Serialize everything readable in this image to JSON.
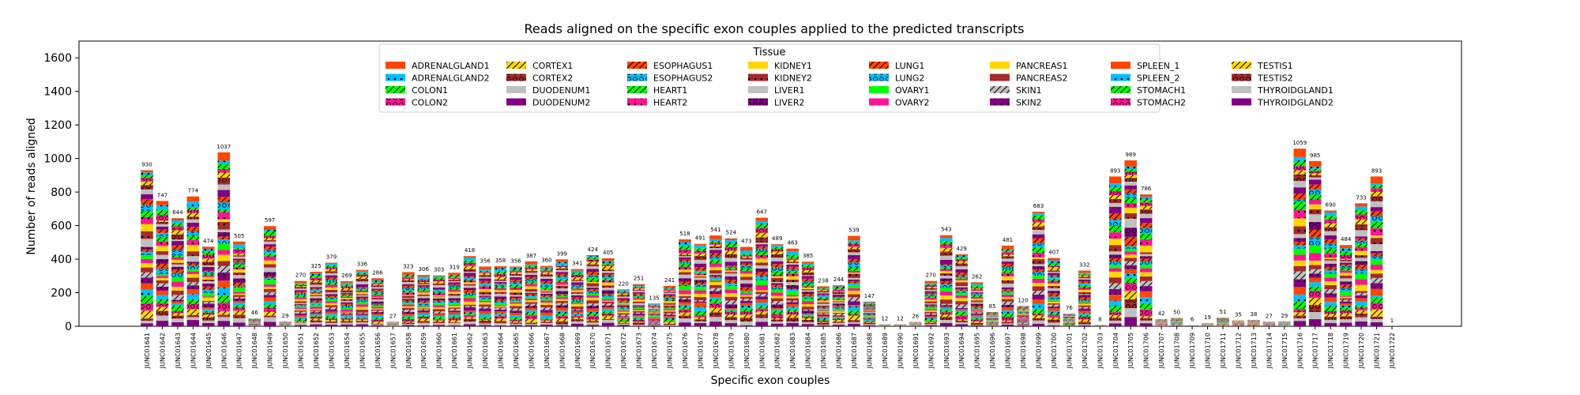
{
  "chart_data": {
    "type": "bar",
    "stacked": true,
    "title": "Reads aligned on the specific exon couples applied to the predicted transcripts",
    "xlabel": "Specific exon couples",
    "ylabel": "Number of reads aligned",
    "ylim": [
      0,
      1700
    ],
    "yticks": [
      0,
      200,
      400,
      600,
      800,
      1000,
      1200,
      1400,
      1600
    ],
    "grid": false,
    "legend": {
      "title": "Tissue",
      "placement": "top-center",
      "columns": 7
    },
    "categories": [
      "JUNC01641",
      "JUNC01642",
      "JUNC01643",
      "JUNC01644",
      "JUNC01645",
      "JUNC01646",
      "JUNC01647",
      "JUNC01648",
      "JUNC01649",
      "JUNC01650",
      "JUNC01651",
      "JUNC01652",
      "JUNC01653",
      "JUNC01654",
      "JUNC01655",
      "JUNC01656",
      "JUNC01657",
      "JUNC01658",
      "JUNC01659",
      "JUNC01660",
      "JUNC01661",
      "JUNC01662",
      "JUNC01663",
      "JUNC01664",
      "JUNC01665",
      "JUNC01666",
      "JUNC01667",
      "JUNC01668",
      "JUNC01669",
      "JUNC01670",
      "JUNC01671",
      "JUNC01672",
      "JUNC01673",
      "JUNC01674",
      "JUNC01675",
      "JUNC01676",
      "JUNC01677",
      "JUNC01678",
      "JUNC01679",
      "JUNC01680",
      "JUNC01681",
      "JUNC01682",
      "JUNC01683",
      "JUNC01684",
      "JUNC01685",
      "JUNC01686",
      "JUNC01687",
      "JUNC01688",
      "JUNC01689",
      "JUNC01690",
      "JUNC01691",
      "JUNC01692",
      "JUNC01693",
      "JUNC01694",
      "JUNC01695",
      "JUNC01696",
      "JUNC01697",
      "JUNC01698",
      "JUNC01699",
      "JUNC01700",
      "JUNC01701",
      "JUNC01702",
      "JUNC01703",
      "JUNC01704",
      "JUNC01705",
      "JUNC01706",
      "JUNC01707",
      "JUNC01708",
      "JUNC01709",
      "JUNC01710",
      "JUNC01711",
      "JUNC01712",
      "JUNC01713",
      "JUNC01714",
      "JUNC01715",
      "JUNC01716",
      "JUNC01717",
      "JUNC01718",
      "JUNC01719",
      "JUNC01720",
      "JUNC01721",
      "JUNC01722"
    ],
    "totals": [
      930,
      747,
      644,
      774,
      474,
      1037,
      505,
      46,
      597,
      29,
      270,
      325,
      379,
      269,
      336,
      286,
      27,
      323,
      306,
      303,
      319,
      418,
      356,
      358,
      356,
      387,
      360,
      399,
      341,
      424,
      405,
      220,
      251,
      135,
      241,
      518,
      491,
      541,
      524,
      473,
      647,
      489,
      463,
      385,
      238,
      244,
      539,
      147,
      12,
      12,
      26,
      270,
      543,
      429,
      262,
      85,
      481,
      120,
      683,
      407,
      76,
      332,
      8,
      893,
      989,
      786,
      42,
      50,
      6,
      19,
      51,
      35,
      38,
      27,
      29,
      1059,
      985,
      690,
      484,
      733,
      893,
      1
    ],
    "series": [
      {
        "name": "ADRENALGLAND1",
        "color": "#FF4500",
        "hatch": ""
      },
      {
        "name": "ADRENALGLAND2",
        "color": "#00BFFF",
        "hatch": "dot"
      },
      {
        "name": "COLON1",
        "color": "#00FF00",
        "hatch": "slash"
      },
      {
        "name": "COLON2",
        "color": "#FF1493",
        "hatch": "circle"
      },
      {
        "name": "CORTEX1",
        "color": "#FFD700",
        "hatch": "slash"
      },
      {
        "name": "CORTEX2",
        "color": "#A52A2A",
        "hatch": "circle"
      },
      {
        "name": "DUODENUM1",
        "color": "#C0C0C0",
        "hatch": ""
      },
      {
        "name": "DUODENUM2",
        "color": "#800080",
        "hatch": ""
      },
      {
        "name": "ESOPHAGUS1",
        "color": "#FF4500",
        "hatch": "slash"
      },
      {
        "name": "ESOPHAGUS2",
        "color": "#00BFFF",
        "hatch": "circle"
      },
      {
        "name": "HEART1",
        "color": "#00FF00",
        "hatch": "slash"
      },
      {
        "name": "HEART2",
        "color": "#FF1493",
        "hatch": "dot"
      },
      {
        "name": "KIDNEY1",
        "color": "#FFD700",
        "hatch": ""
      },
      {
        "name": "KIDNEY2",
        "color": "#A52A2A",
        "hatch": "dot"
      },
      {
        "name": "LIVER1",
        "color": "#C0C0C0",
        "hatch": ""
      },
      {
        "name": "LIVER2",
        "color": "#800080",
        "hatch": "circle"
      },
      {
        "name": "LUNG1",
        "color": "#FF4500",
        "hatch": "slash"
      },
      {
        "name": "LUNG2",
        "color": "#00BFFF",
        "hatch": "circle"
      },
      {
        "name": "OVARY1",
        "color": "#00FF00",
        "hatch": ""
      },
      {
        "name": "OVARY2",
        "color": "#FF1493",
        "hatch": ""
      },
      {
        "name": "PANCREAS1",
        "color": "#FFD700",
        "hatch": ""
      },
      {
        "name": "PANCREAS2",
        "color": "#A52A2A",
        "hatch": ""
      },
      {
        "name": "SKIN1",
        "color": "#C0C0C0",
        "hatch": "slash"
      },
      {
        "name": "SKIN2",
        "color": "#800080",
        "hatch": "dot"
      },
      {
        "name": "SPLEEN_1",
        "color": "#FF4500",
        "hatch": ""
      },
      {
        "name": "SPLEEN_2",
        "color": "#00BFFF",
        "hatch": "dot"
      },
      {
        "name": "STOMACH1",
        "color": "#00FF00",
        "hatch": "slash"
      },
      {
        "name": "STOMACH2",
        "color": "#FF1493",
        "hatch": "circle"
      },
      {
        "name": "TESTIS1",
        "color": "#FFD700",
        "hatch": "slash"
      },
      {
        "name": "TESTIS2",
        "color": "#A52A2A",
        "hatch": "circle"
      },
      {
        "name": "THYROIDGLAND1",
        "color": "#C0C0C0",
        "hatch": ""
      },
      {
        "name": "THYROIDGLAND2",
        "color": "#800080",
        "hatch": ""
      }
    ]
  }
}
